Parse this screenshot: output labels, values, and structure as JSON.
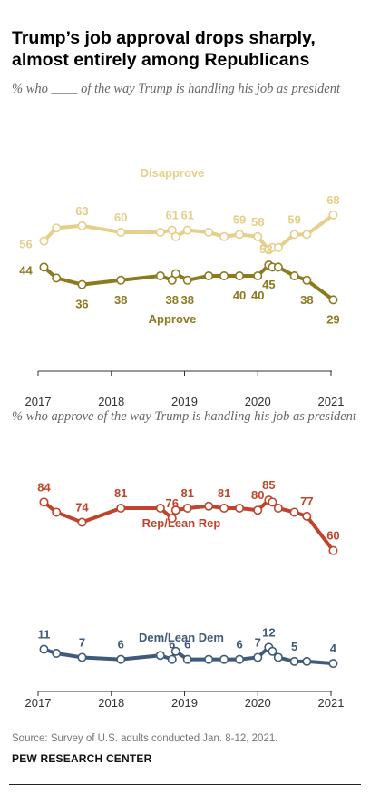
{
  "title": "Trump’s job approval drops sharply, almost entirely among Republicans",
  "subtitle_top": "% who ____ of the way Trump is handling his job as president",
  "subtitle_bottom": "% who approve of the way Trump is handling his job as president",
  "source": "Source: Survey of U.S. adults conducted Jan. 8-12, 2021.",
  "brand": "PEW RESEARCH CENTER",
  "colors": {
    "disapprove": "#e6cf8a",
    "approve": "#8d7a1f",
    "rep": "#c0442b",
    "dem": "#3f5a7a",
    "axis": "#333333"
  },
  "chart_data": [
    {
      "type": "line",
      "xlabel": "",
      "ylabel": "",
      "ylim": [
        25,
        75
      ],
      "x_ticks": [
        "2017",
        "2018",
        "2019",
        "2020",
        "2021"
      ],
      "grid": false,
      "series": [
        {
          "name": "Disapprove",
          "x": [
            2017.08,
            2017.25,
            2017.6,
            2018.13,
            2018.67,
            2018.83,
            2018.88,
            2019.04,
            2019.33,
            2019.54,
            2019.75,
            2020.0,
            2020.15,
            2020.2,
            2020.28,
            2020.5,
            2020.67,
            2021.03
          ],
          "values": [
            56,
            62,
            63,
            60,
            60,
            61,
            58,
            61,
            60,
            58,
            59,
            58,
            52,
            53,
            53,
            59,
            59,
            68
          ],
          "labels": {
            "0": "56",
            "2": "63",
            "3": "60",
            "5": "61",
            "7": "61",
            "10": "59",
            "11": "58",
            "12": "52",
            "15": "59",
            "17": "68"
          }
        },
        {
          "name": "Approve",
          "x": [
            2017.08,
            2017.25,
            2017.6,
            2018.13,
            2018.67,
            2018.83,
            2018.88,
            2019.04,
            2019.33,
            2019.54,
            2019.75,
            2020.0,
            2020.15,
            2020.2,
            2020.28,
            2020.5,
            2020.67,
            2021.03
          ],
          "values": [
            44,
            39,
            36,
            38,
            40,
            38,
            41,
            38,
            40,
            40,
            40,
            40,
            45,
            44,
            44,
            40,
            38,
            29
          ],
          "labels": {
            "0": "44",
            "2": "36",
            "3": "38",
            "5": "38",
            "7": "38",
            "10": "40",
            "11": "40",
            "12": "45",
            "16": "38",
            "17": "29"
          }
        }
      ]
    },
    {
      "type": "line",
      "xlabel": "",
      "ylabel": "",
      "ylim": [
        0,
        90
      ],
      "x_ticks": [
        "2017",
        "2018",
        "2019",
        "2020",
        "2021"
      ],
      "grid": false,
      "series": [
        {
          "name": "Rep/Lean Rep",
          "x": [
            2017.08,
            2017.25,
            2017.6,
            2018.13,
            2018.67,
            2018.83,
            2018.88,
            2019.04,
            2019.33,
            2019.54,
            2019.75,
            2020.0,
            2020.15,
            2020.2,
            2020.28,
            2020.5,
            2020.67,
            2021.03
          ],
          "values": [
            84,
            79,
            74,
            81,
            81,
            76,
            80,
            81,
            82,
            81,
            81,
            80,
            85,
            84,
            81,
            79,
            77,
            60
          ],
          "labels": {
            "0": "84",
            "2": "74",
            "3": "81",
            "5": "76",
            "7": "81",
            "9": "81",
            "11": "80",
            "12": "85",
            "16": "77",
            "17": "60"
          }
        },
        {
          "name": "Dem/Lean Dem",
          "x": [
            2017.08,
            2017.25,
            2017.6,
            2018.13,
            2018.67,
            2018.83,
            2018.88,
            2019.04,
            2019.33,
            2019.54,
            2019.75,
            2020.0,
            2020.15,
            2020.2,
            2020.28,
            2020.5,
            2020.67,
            2021.03
          ],
          "values": [
            11,
            9,
            7,
            6,
            8,
            6,
            10,
            6,
            6,
            6,
            6,
            7,
            12,
            10,
            7,
            5,
            5,
            4
          ],
          "labels": {
            "0": "11",
            "2": "7",
            "3": "6",
            "5": "6",
            "7": "6",
            "10": "6",
            "11": "7",
            "12": "12",
            "15": "5",
            "17": "4"
          }
        }
      ]
    }
  ]
}
